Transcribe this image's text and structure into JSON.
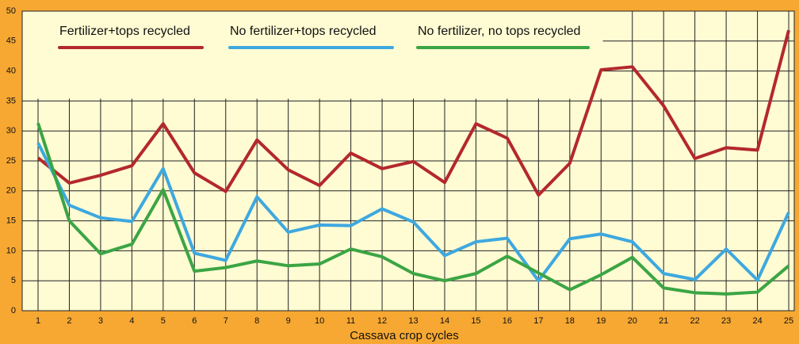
{
  "chart_data": {
    "type": "line",
    "xlabel": "Cassava crop cycles",
    "categories": [
      "1",
      "2",
      "3",
      "4",
      "5",
      "6",
      "7",
      "8",
      "9",
      "10",
      "11",
      "12",
      "13",
      "14",
      "15",
      "16",
      "17",
      "18",
      "19",
      "20",
      "21",
      "22",
      "23",
      "24",
      "25"
    ],
    "series": [
      {
        "name": "Fertilizer+tops recycled",
        "color": "#b3282d",
        "values": [
          25.5,
          21.3,
          22.6,
          24.2,
          31.2,
          23,
          19.9,
          28.5,
          23.5,
          20.9,
          26.3,
          23.7,
          24.9,
          21.4,
          31.2,
          28.8,
          19.3,
          24.6,
          40.2,
          40.7,
          34.2,
          25.4,
          27.2,
          26.8,
          46.8
        ]
      },
      {
        "name": "No fertilizer+tops recycled",
        "color": "#3ea8df",
        "values": [
          28,
          17.6,
          15.5,
          14.9,
          23.7,
          9.6,
          8.4,
          19,
          13.1,
          14.3,
          14.2,
          17,
          14.8,
          9.2,
          11.5,
          12.1,
          5,
          12,
          12.8,
          11.5,
          6.2,
          5.2,
          10.3,
          5.1,
          16.4
        ]
      },
      {
        "name": "No fertilizer, no tops recycled",
        "color": "#3ba544",
        "values": [
          31.3,
          15,
          9.5,
          11.1,
          20.2,
          6.6,
          7.2,
          8.3,
          7.5,
          7.8,
          10.3,
          9,
          6.2,
          5,
          6.2,
          9.1,
          6.3,
          3.5,
          6,
          8.9,
          3.8,
          3,
          2.8,
          3.1,
          7.5
        ]
      }
    ],
    "ylim": [
      0,
      50
    ],
    "yticks": [
      0,
      5,
      10,
      15,
      20,
      25,
      30,
      35,
      40,
      45,
      50
    ],
    "grid": true
  }
}
